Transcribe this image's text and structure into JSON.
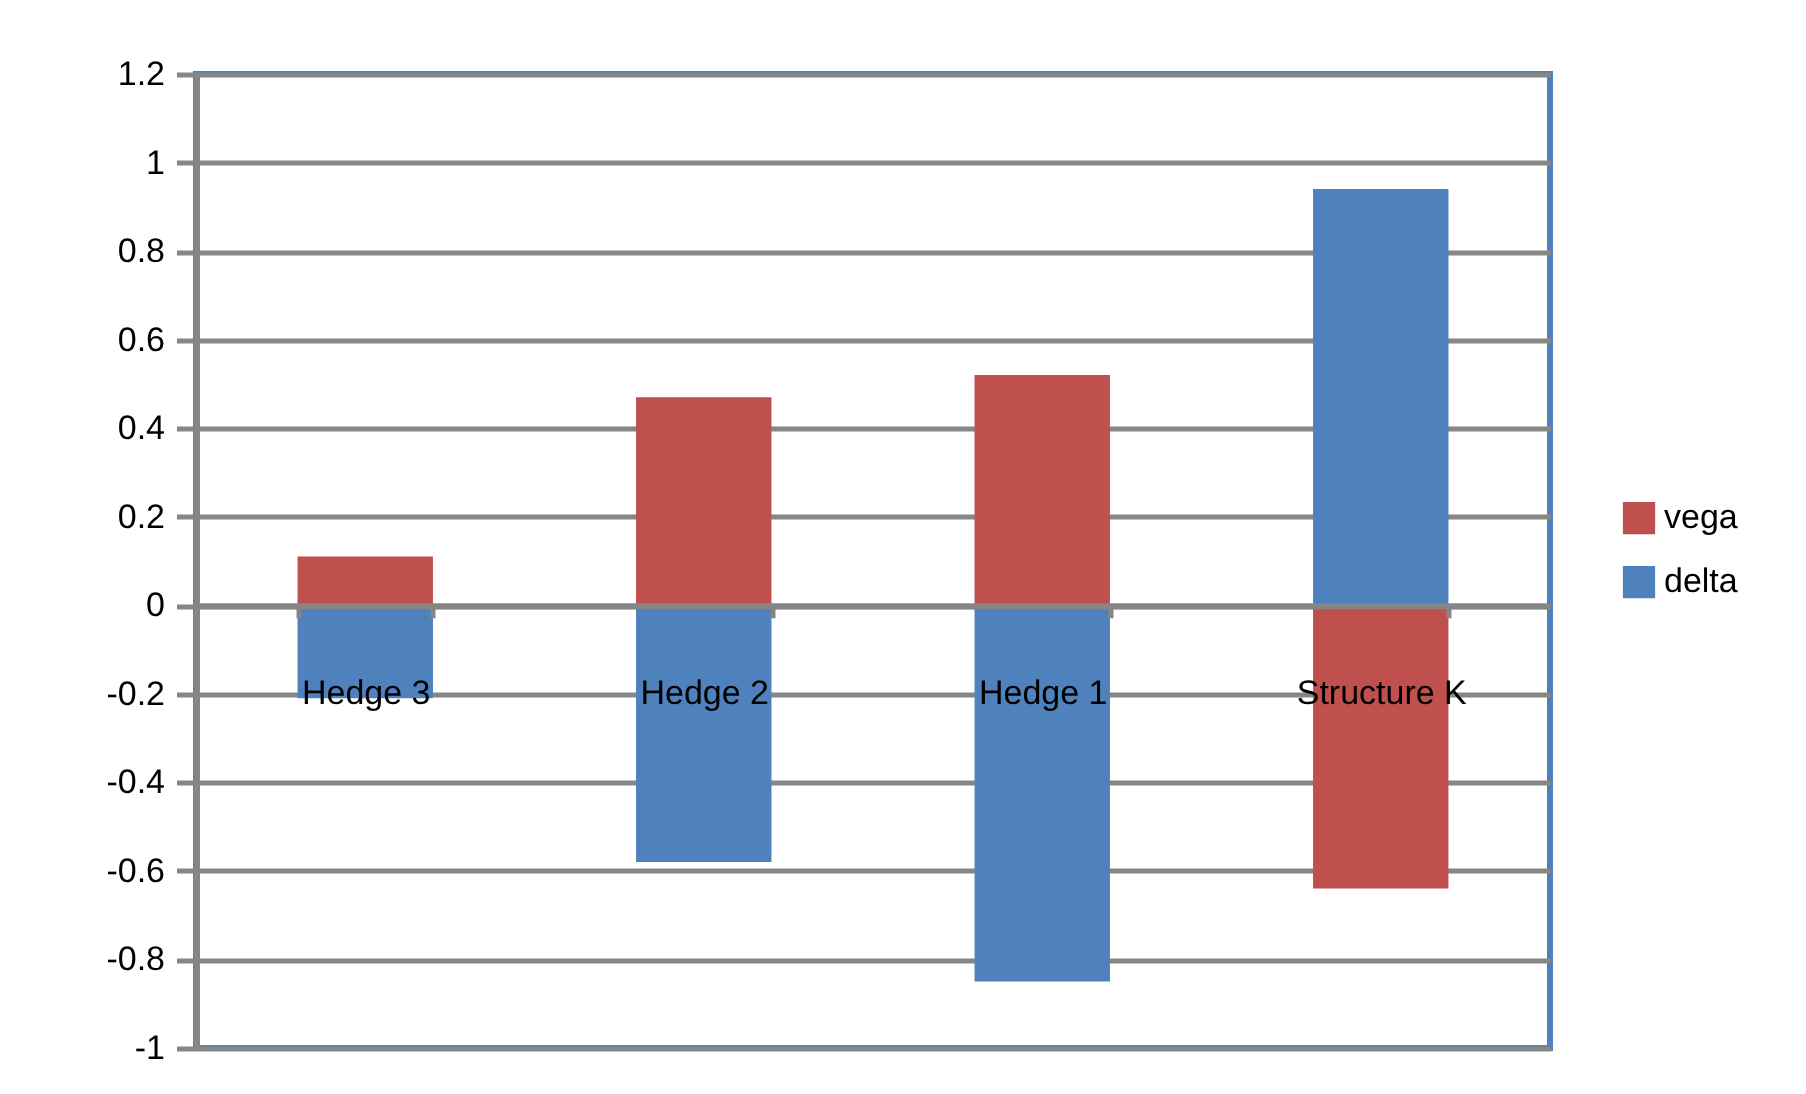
{
  "chart_data": {
    "type": "bar",
    "stacked": true,
    "categories": [
      "Hedge 3",
      "Hedge 2",
      "Hedge 1",
      "Structure K"
    ],
    "series": [
      {
        "name": "vega",
        "color": "#c0504d",
        "values": [
          0.11,
          0.47,
          0.52,
          -0.64
        ]
      },
      {
        "name": "delta",
        "color": "#4f81bd",
        "values": [
          -0.21,
          -0.58,
          -0.85,
          0.94
        ]
      }
    ],
    "ylim": [
      -1,
      1.2
    ],
    "yticks": [
      -1,
      -0.8,
      -0.6,
      -0.4,
      -0.2,
      0,
      0.2,
      0.4,
      0.6,
      0.8,
      1,
      1.2
    ],
    "grid": "y",
    "legend": "right"
  }
}
